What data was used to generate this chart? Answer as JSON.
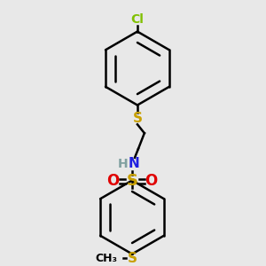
{
  "bg_color": "#e8e8e8",
  "line_color": "#000000",
  "cl_color": "#80c000",
  "s_color": "#c8a000",
  "n_color": "#2020e0",
  "h_color": "#80a0a0",
  "o_color": "#e00000",
  "line_width": 1.8,
  "figsize": [
    3.0,
    3.0
  ],
  "dpi": 100,
  "xlim": [
    0,
    300
  ],
  "ylim": [
    0,
    300
  ]
}
